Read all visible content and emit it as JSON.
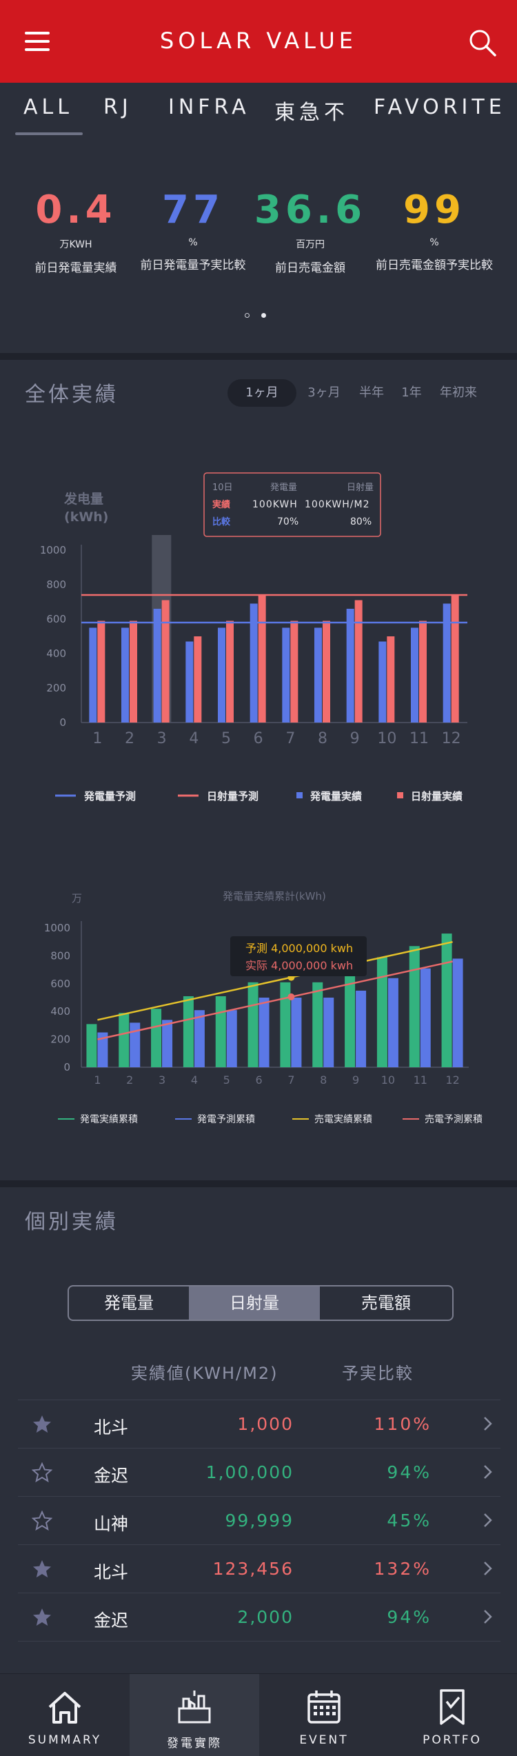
{
  "header": {
    "title": "SOLAR VALUE",
    "menu_icon": "hamburger-menu-icon",
    "search_icon": "search-icon",
    "bg_color": "#d0181f"
  },
  "tabs": [
    {
      "label": "ALL",
      "active": true
    },
    {
      "label": "RJ",
      "active": false
    },
    {
      "label": "INFRA",
      "active": false
    },
    {
      "label": "東急不",
      "active": false
    },
    {
      "label": "FAVORITE",
      "active": false
    }
  ],
  "kpis": [
    {
      "value": "0.4",
      "unit": "万KWH",
      "label": "前日発電量実績",
      "color": "#f26d6d"
    },
    {
      "value": "77",
      "unit": "%",
      "label": "前日発電量予実比較",
      "color": "#5b78e6"
    },
    {
      "value": "36.6",
      "unit": "百万円",
      "label": "前日売電金額",
      "color": "#33b37f"
    },
    {
      "value": "99",
      "unit": "%",
      "label": "前日売電金額予実比較",
      "color": "#f2b81f"
    }
  ],
  "carousel": {
    "pages": 2,
    "active": 2
  },
  "overall": {
    "title": "全体実績",
    "periods": [
      {
        "label": "1ヶ月",
        "active": true
      },
      {
        "label": "3ヶ月",
        "active": false
      },
      {
        "label": "半年",
        "active": false
      },
      {
        "label": "1年",
        "active": false
      },
      {
        "label": "年初来",
        "active": false
      }
    ]
  },
  "chart_data": [
    {
      "type": "bar",
      "ylabel": "发电量\n(kWh)",
      "ylim": [
        0,
        1000
      ],
      "yticks": [
        0,
        200,
        400,
        600,
        800,
        1000
      ],
      "categories": [
        "1",
        "2",
        "3",
        "4",
        "5",
        "6",
        "7",
        "8",
        "9",
        "10",
        "11",
        "12"
      ],
      "series": [
        {
          "name": "発電量実績",
          "color": "#5b78e6",
          "values": [
            550,
            550,
            660,
            470,
            550,
            690,
            550,
            550,
            660,
            470,
            550,
            690
          ]
        },
        {
          "name": "日射量実績",
          "color": "#f26d6d",
          "values": [
            590,
            590,
            710,
            500,
            590,
            740,
            590,
            590,
            710,
            500,
            590,
            740
          ]
        }
      ],
      "lines": [
        {
          "name": "発電量予測",
          "color": "#5b78e6",
          "value": 580
        },
        {
          "name": "日射量予測",
          "color": "#f26d6d",
          "value": 740
        }
      ],
      "highlight_category": "3",
      "tooltip": {
        "date": "10日",
        "col1": "発電量",
        "col2": "日射量",
        "row1_label": "実績",
        "row1_v1": "100KWH",
        "row1_v2": "100KWH/M2",
        "row2_label": "比較",
        "row2_v1": "70%",
        "row2_v2": "80%"
      },
      "legend": [
        {
          "label": "発電量予測",
          "kind": "line",
          "color": "#5b78e6"
        },
        {
          "label": "日射量予測",
          "kind": "line",
          "color": "#f26d6d"
        },
        {
          "label": "発電量実績",
          "kind": "square",
          "color": "#5b78e6"
        },
        {
          "label": "日射量実績",
          "kind": "square",
          "color": "#f26d6d"
        }
      ]
    },
    {
      "type": "bar",
      "title": "発電量実績累計(kWh)",
      "ylabel": "万",
      "ylim": [
        0,
        1000
      ],
      "yticks": [
        0,
        200,
        400,
        600,
        800,
        1000
      ],
      "categories": [
        "1",
        "2",
        "3",
        "4",
        "5",
        "6",
        "7",
        "8",
        "9",
        "10",
        "11",
        "12"
      ],
      "series": [
        {
          "name": "発電実績累積",
          "color": "#33b37f",
          "values": [
            310,
            390,
            420,
            510,
            510,
            610,
            610,
            610,
            680,
            790,
            870,
            960
          ]
        },
        {
          "name": "発電予測累積",
          "color": "#5b78e6",
          "values": [
            250,
            320,
            340,
            410,
            410,
            500,
            500,
            500,
            550,
            640,
            710,
            780
          ]
        }
      ],
      "trend_lines": [
        {
          "name": "売電実績累積",
          "color": "#e5c22b",
          "from": 340,
          "to": 900
        },
        {
          "name": "売電予測累積",
          "color": "#e86a6a",
          "from": 200,
          "to": 760
        }
      ],
      "marker_category": "7",
      "tooltip": {
        "line1": "予測 4,000,000 kwh",
        "line2": "实际 4,000,000 kwh"
      },
      "legend": [
        {
          "label": "発電実績累積",
          "color": "#33b37f"
        },
        {
          "label": "発電予測累積",
          "color": "#5b78e6"
        },
        {
          "label": "売電実績累積",
          "color": "#e5c22b"
        },
        {
          "label": "売電予測累積",
          "color": "#e86a6a"
        }
      ]
    }
  ],
  "individual": {
    "title": "個別実績",
    "segments": [
      {
        "label": "発電量",
        "active": false
      },
      {
        "label": "日射量",
        "active": true
      },
      {
        "label": "売電額",
        "active": false
      }
    ],
    "col_value": "実績値(KWH/M2)",
    "col_compare": "予実比較",
    "rows": [
      {
        "starred": true,
        "name": "北斗",
        "value": "1,000",
        "value_color": "#f26d6d",
        "pct": "110%",
        "pct_color": "#f26d6d"
      },
      {
        "starred": false,
        "name": "金迟",
        "value": "1,00,000",
        "value_color": "#33b37f",
        "pct": "94%",
        "pct_color": "#33b37f"
      },
      {
        "starred": false,
        "name": "山神",
        "value": "99,999",
        "value_color": "#33b37f",
        "pct": "45%",
        "pct_color": "#33b37f"
      },
      {
        "starred": true,
        "name": "北斗",
        "value": "123,456",
        "value_color": "#f26d6d",
        "pct": "132%",
        "pct_color": "#f26d6d"
      },
      {
        "starred": true,
        "name": "金迟",
        "value": "2,000",
        "value_color": "#33b37f",
        "pct": "94%",
        "pct_color": "#33b37f"
      }
    ]
  },
  "bottom_nav": [
    {
      "label": "SUMMARY",
      "icon": "home-icon",
      "active": false
    },
    {
      "label": "發電實際",
      "icon": "power-plant-icon",
      "active": true
    },
    {
      "label": "EVENT",
      "icon": "calendar-icon",
      "active": false
    },
    {
      "label": "PORTFO",
      "icon": "bookmark-icon",
      "active": false
    }
  ]
}
